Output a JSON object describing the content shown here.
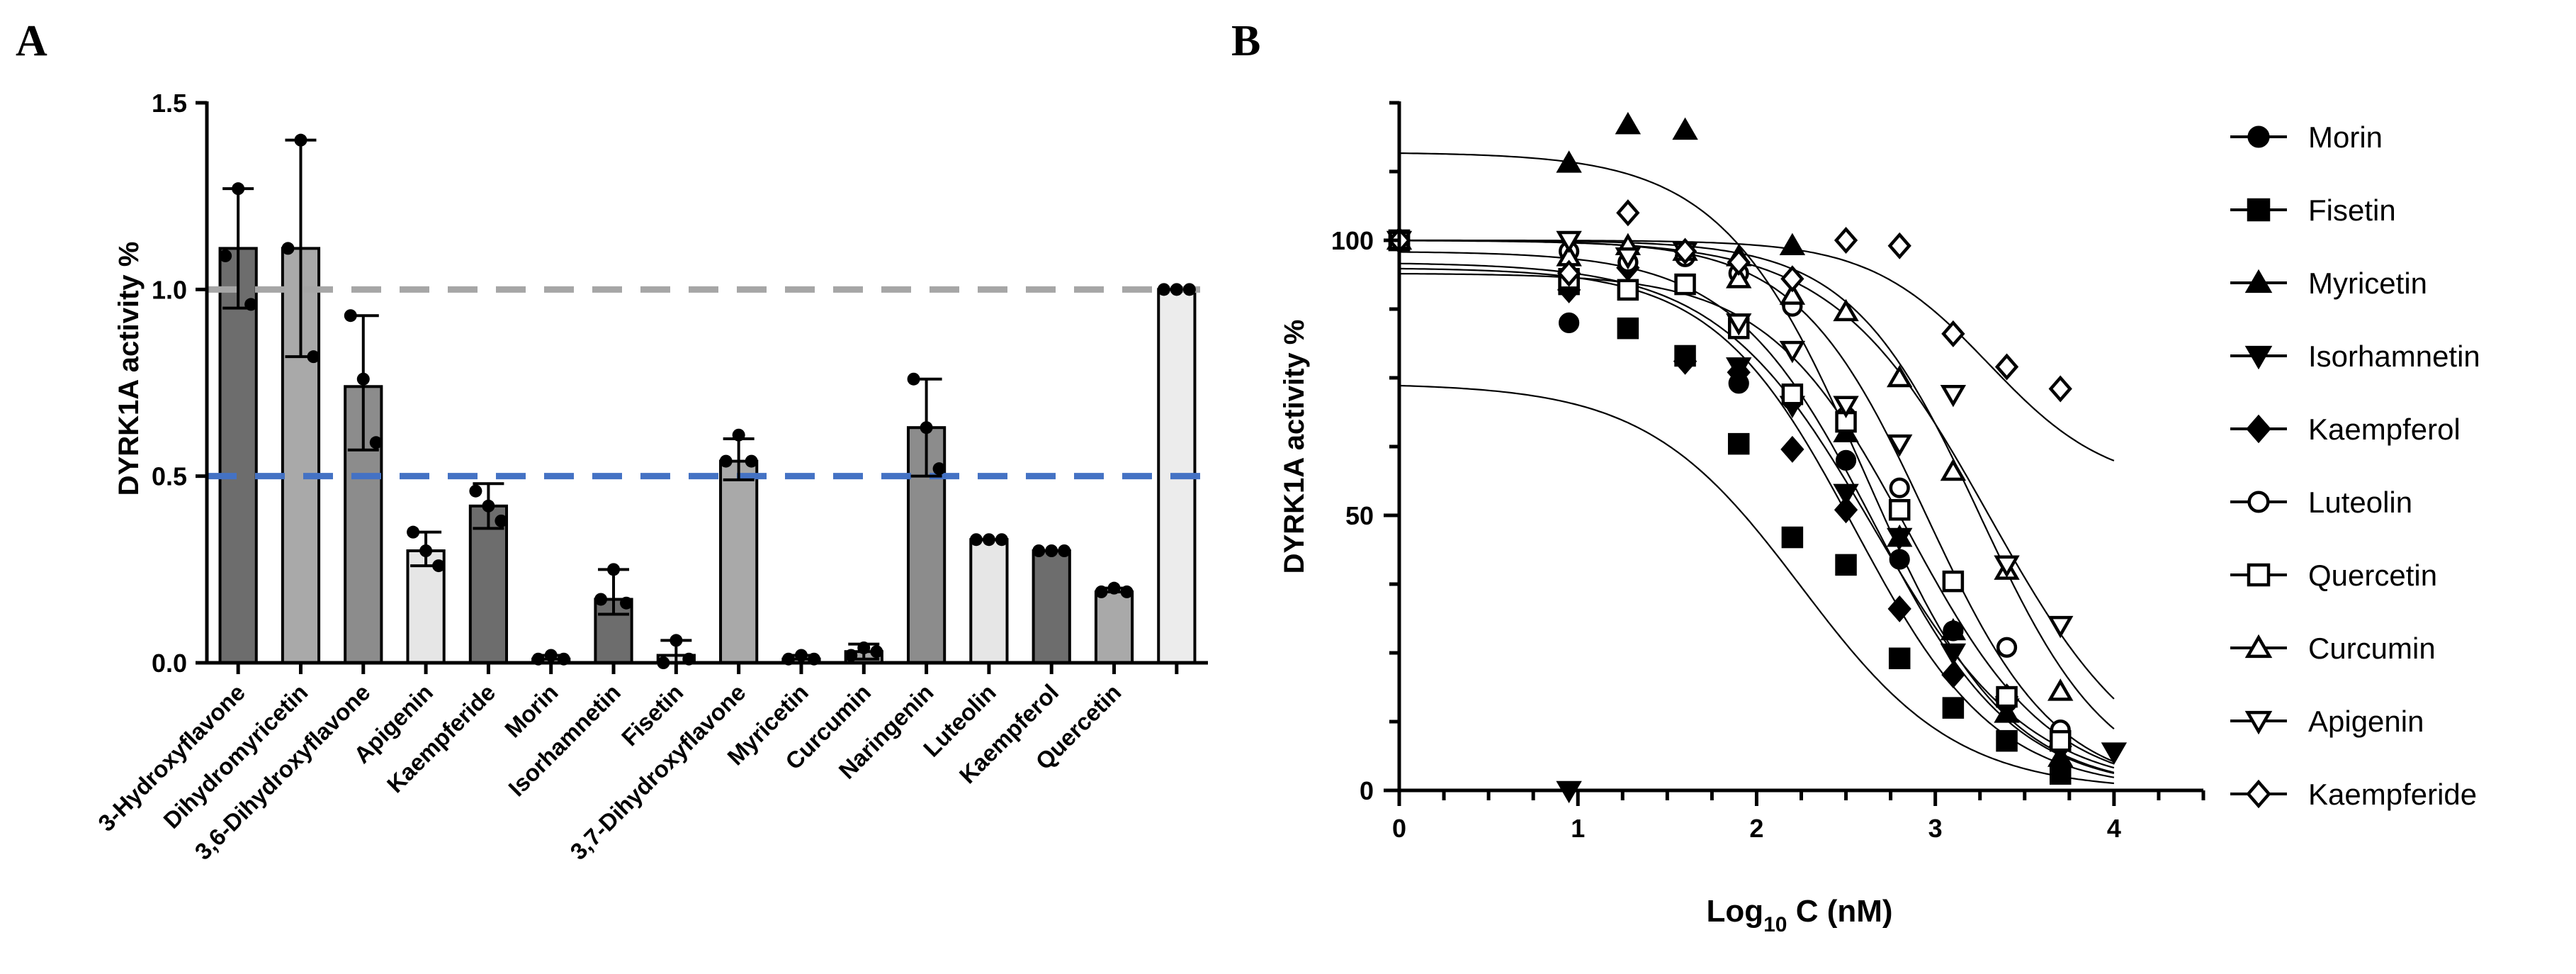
{
  "panels": {
    "a": "A",
    "b": "B"
  },
  "chart_data": [
    {
      "type": "bar",
      "panel": "A",
      "ylabel": "DYRK1A activity %",
      "xlabel": "",
      "ylim": [
        0,
        1.5
      ],
      "yticks": [
        0.0,
        0.5,
        1.0,
        1.5
      ],
      "ytick_labels": [
        "0.0",
        "0.5",
        "1.0",
        "1.5"
      ],
      "categories": [
        "3-Hydroxyflavone",
        "Dihydromyricetin",
        "3,6-Dihydroxyflavone",
        "Apigenin",
        "Kaempferide",
        "Morin",
        "Isorhamnetin",
        "Fisetin",
        "3,7-Dihydroxyflavone",
        "Myricetin",
        "Curcumin",
        "Naringenin",
        "Luteolin",
        "Kaempferol",
        "Quercetin",
        ""
      ],
      "values": [
        1.11,
        1.11,
        0.74,
        0.3,
        0.42,
        0.01,
        0.17,
        0.02,
        0.54,
        0.01,
        0.03,
        0.63,
        0.33,
        0.3,
        0.19,
        1.0
      ],
      "error_high": [
        1.27,
        1.4,
        0.93,
        0.35,
        0.48,
        0.02,
        0.25,
        0.06,
        0.6,
        0.02,
        0.05,
        0.76,
        0.33,
        0.3,
        0.2,
        1.0
      ],
      "error_low": [
        0.95,
        0.82,
        0.57,
        0.26,
        0.36,
        0.0,
        0.13,
        0.0,
        0.49,
        0.0,
        0.01,
        0.5,
        0.33,
        0.3,
        0.19,
        1.0
      ],
      "points": [
        [
          1.09,
          1.27,
          0.96
        ],
        [
          1.11,
          1.4,
          0.82
        ],
        [
          0.93,
          0.76,
          0.59
        ],
        [
          0.35,
          0.3,
          0.26
        ],
        [
          0.46,
          0.42,
          0.38
        ],
        [
          0.01,
          0.02,
          0.01
        ],
        [
          0.17,
          0.25,
          0.16
        ],
        [
          0.0,
          0.06,
          0.01
        ],
        [
          0.54,
          0.61,
          0.54
        ],
        [
          0.01,
          0.02,
          0.01
        ],
        [
          0.02,
          0.04,
          0.03
        ],
        [
          0.76,
          0.63,
          0.52
        ],
        [
          0.33,
          0.33,
          0.33
        ],
        [
          0.3,
          0.3,
          0.3
        ],
        [
          0.19,
          0.2,
          0.19
        ],
        [
          1.0,
          1.0,
          1.0
        ]
      ],
      "bar_colors": [
        "#6d6d6d",
        "#a9a9a9",
        "#8c8c8c",
        "#e6e6e6",
        "#6d6d6d",
        "#e6e6e6",
        "#6d6d6d",
        "#e6e6e6",
        "#a9a9a9",
        "#e6e6e6",
        "#a9a9a9",
        "#8c8c8c",
        "#e6e6e6",
        "#6d6d6d",
        "#a9a9a9",
        "#ececec"
      ],
      "reference_lines": [
        {
          "y": 1.0,
          "color": "#a6a6a6",
          "style": "dashed"
        },
        {
          "y": 0.5,
          "color": "#4472c4",
          "style": "dashed"
        }
      ]
    },
    {
      "type": "scatter",
      "panel": "B",
      "xlabel_main": "Log",
      "xlabel_sub": "10",
      "xlabel_rest": " C (nM)",
      "ylabel": "DYRK1A activity %",
      "xlim": [
        0,
        4.5
      ],
      "ylim": [
        0,
        125
      ],
      "xticks": [
        0,
        1,
        2,
        3,
        4
      ],
      "xtick_labels": [
        "0",
        "1",
        "2",
        "3",
        "4"
      ],
      "yticks": [
        0,
        50,
        100
      ],
      "ytick_labels": [
        "0",
        "50",
        "100"
      ],
      "legend_position": "right",
      "series": [
        {
          "name": "Morin",
          "marker": "circle-filled",
          "x": [
            0,
            0.95,
            1.28,
            1.6,
            1.9,
            2.2,
            2.5,
            2.8,
            3.1,
            3.4,
            3.7
          ],
          "y": [
            100,
            85,
            96,
            92,
            74,
            71,
            60,
            42,
            29,
            16,
            10
          ],
          "curve": {
            "top": 98,
            "bottom": 0,
            "logic50": 2.65,
            "hill": 1.1
          }
        },
        {
          "name": "Fisetin",
          "marker": "square-filled",
          "x": [
            0,
            0.95,
            1.28,
            1.6,
            1.9,
            2.2,
            2.5,
            2.8,
            3.1,
            3.4,
            3.7
          ],
          "y": [
            100,
            92,
            84,
            79,
            63,
            46,
            41,
            24,
            15,
            9,
            3
          ],
          "curve": {
            "top": 74,
            "bottom": 0,
            "logic50": 2.25,
            "hill": 1.0
          }
        },
        {
          "name": "Myricetin",
          "marker": "triangle-filled",
          "x": [
            0.95,
            1.28,
            1.6,
            1.9,
            2.2,
            2.5,
            2.8,
            3.1,
            3.4,
            3.7
          ],
          "y": [
            114,
            121,
            120,
            97,
            99,
            65,
            46,
            29,
            14,
            6
          ],
          "curve": {
            "top": 116,
            "bottom": 0,
            "logic50": 2.6,
            "hill": 1.1
          }
        },
        {
          "name": "Isorhamnetin",
          "marker": "triangle-down-filled",
          "x": [
            0.95,
            1.9,
            2.2,
            2.5,
            2.8,
            3.1,
            3.4,
            4.0
          ],
          "y": [
            0,
            77,
            70,
            54,
            46,
            25,
            15,
            7
          ],
          "curve": {
            "top": 96,
            "bottom": 0,
            "logic50": 2.65,
            "hill": 1.0
          }
        },
        {
          "name": "Kaempferol",
          "marker": "diamond-filled",
          "x": [
            0,
            0.95,
            1.28,
            1.6,
            1.9,
            2.2,
            2.5,
            2.8,
            3.1,
            3.4,
            3.7
          ],
          "y": [
            100,
            91,
            95,
            78,
            76,
            62,
            51,
            33,
            21,
            17,
            8
          ],
          "curve": {
            "top": 95,
            "bottom": 0,
            "logic50": 2.55,
            "hill": 1.1
          }
        },
        {
          "name": "Luteolin",
          "marker": "circle-open",
          "x": [
            0,
            0.95,
            1.28,
            1.6,
            1.9,
            2.2,
            2.5,
            2.8,
            3.1,
            3.4,
            3.7
          ],
          "y": [
            100,
            98,
            96,
            97,
            94,
            88,
            68,
            55,
            38,
            26,
            11
          ],
          "curve": {
            "top": 100,
            "bottom": 0,
            "logic50": 2.95,
            "hill": 1.2
          }
        },
        {
          "name": "Quercetin",
          "marker": "square-open",
          "x": [
            0,
            0.95,
            1.28,
            1.6,
            1.9,
            2.2,
            2.5,
            2.8,
            3.1,
            3.4,
            3.7
          ],
          "y": [
            100,
            93,
            91,
            92,
            84,
            72,
            67,
            51,
            38,
            17,
            9
          ],
          "curve": {
            "top": 94,
            "bottom": 0,
            "logic50": 2.85,
            "hill": 1.1
          }
        },
        {
          "name": "Curcumin",
          "marker": "triangle-open",
          "x": [
            0,
            0.95,
            1.28,
            1.6,
            1.9,
            2.2,
            2.5,
            2.8,
            3.1,
            3.4,
            3.7
          ],
          "y": [
            100,
            97,
            99,
            98,
            93,
            90,
            87,
            75,
            58,
            40,
            18
          ],
          "curve": {
            "top": 100,
            "bottom": 0,
            "logic50": 3.25,
            "hill": 1.2
          }
        },
        {
          "name": "Apigenin",
          "marker": "triangle-down-open",
          "x": [
            0,
            0.95,
            1.28,
            1.6,
            1.9,
            2.2,
            2.5,
            2.8,
            3.1,
            3.4,
            3.7
          ],
          "y": [
            100,
            100,
            97,
            98,
            85,
            80,
            70,
            63,
            72,
            41,
            30
          ],
          "curve": {
            "top": 100,
            "bottom": 0,
            "logic50": 3.3,
            "hill": 1.0
          }
        },
        {
          "name": "Kaempferide",
          "marker": "diamond-open",
          "x": [
            0,
            0.95,
            1.28,
            1.6,
            1.9,
            2.2,
            2.5,
            2.8,
            3.1,
            3.4,
            3.7
          ],
          "y": [
            100,
            94,
            105,
            98,
            96,
            93,
            100,
            99,
            83,
            77,
            73
          ],
          "curve": {
            "top": 100,
            "bottom": 55,
            "logic50": 3.3,
            "hill": 1.3
          }
        }
      ]
    }
  ]
}
